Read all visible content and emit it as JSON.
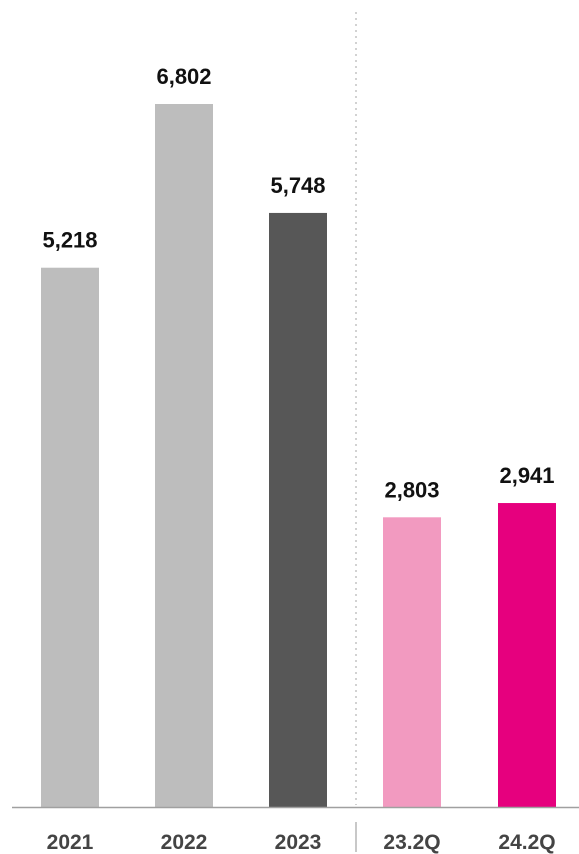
{
  "chart_data": {
    "type": "bar",
    "categories": [
      "2021",
      "2022",
      "2023",
      "23.2Q",
      "24.2Q"
    ],
    "values": [
      5218,
      6802,
      5748,
      2803,
      2941
    ],
    "value_labels": [
      "5,218",
      "6,802",
      "5,748",
      "2,803",
      "2,941"
    ],
    "colors": [
      "#bdbdbd",
      "#bdbdbd",
      "#575757",
      "#f29ac0",
      "#e6007e"
    ],
    "title": "",
    "xlabel": "",
    "ylabel": "",
    "ylim": [
      0,
      7500
    ],
    "grid": false,
    "legend": "none",
    "groups": [
      {
        "categories": [
          "2021",
          "2022",
          "2023"
        ]
      },
      {
        "categories": [
          "23.2Q",
          "24.2Q"
        ]
      }
    ],
    "axis_color": "#a0a0a0",
    "separator_color": "#b5b5b5"
  }
}
